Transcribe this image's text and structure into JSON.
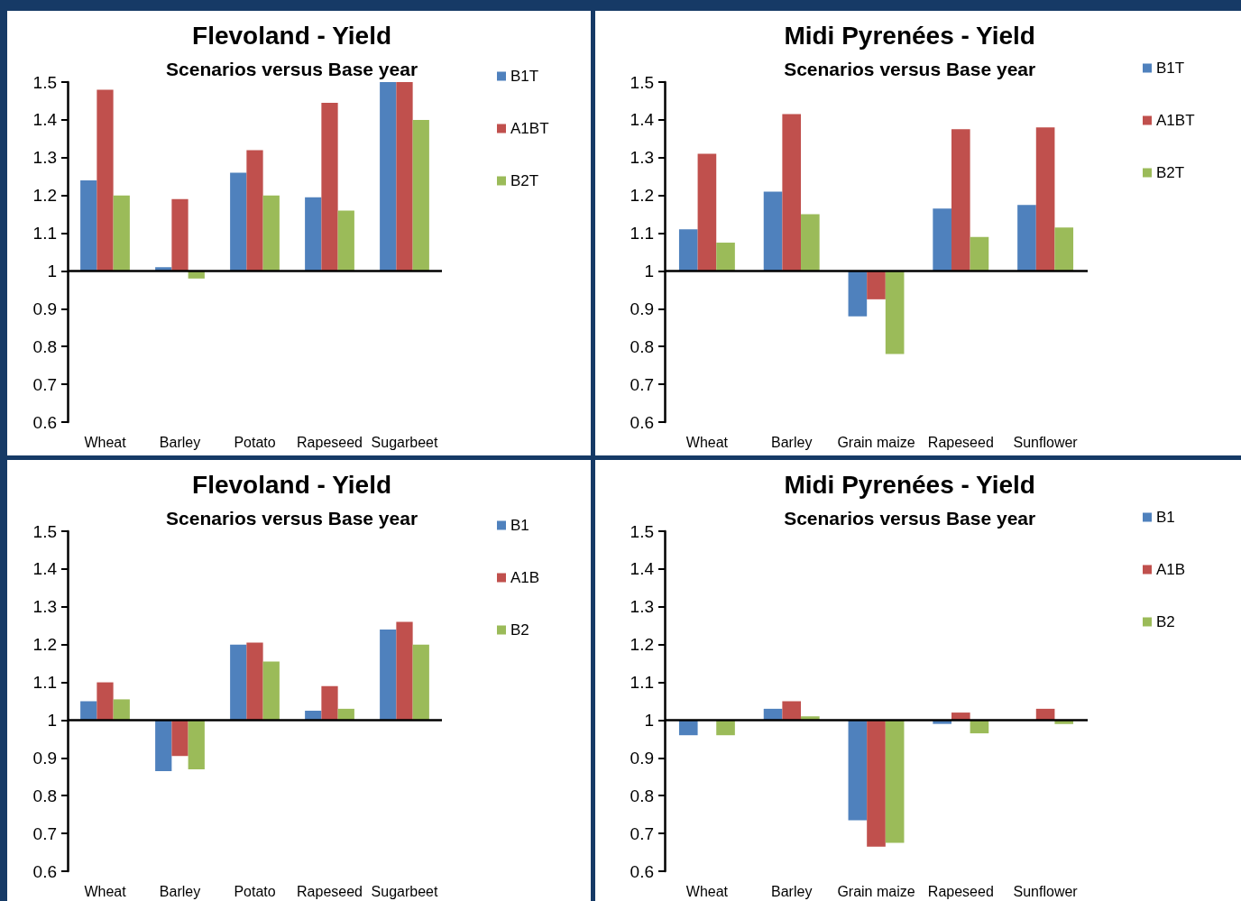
{
  "chart_data": [
    {
      "type": "bar",
      "title": "Flevoland - Yield",
      "subtitle": "Scenarios versus Base year",
      "categories": [
        "Wheat",
        "Barley",
        "Potato",
        "Rapeseed",
        "Sugarbeet"
      ],
      "series": [
        {
          "name": "B1T",
          "color": "#4f81bd",
          "base": [
            1,
            1,
            1,
            1,
            1
          ],
          "values": [
            0.24,
            0.01,
            0.26,
            0.195,
            0.5
          ]
        },
        {
          "name": "A1BT",
          "color": "#c0504d",
          "base": [
            1,
            1,
            1,
            1,
            1
          ],
          "values": [
            0.48,
            0.19,
            0.32,
            0.445,
            0.5
          ]
        },
        {
          "name": "B2T",
          "color": "#9bbb59",
          "base": [
            1,
            1,
            1,
            1,
            1
          ],
          "values": [
            0.2,
            -0.02,
            0.2,
            0.16,
            0.4
          ]
        }
      ],
      "ylim": [
        0.6,
        1.5
      ],
      "yticks": [
        0.6,
        0.7,
        0.8,
        0.9,
        1,
        1.1,
        1.2,
        1.3,
        1.4,
        1.5
      ],
      "grid": false,
      "legend": "right",
      "ref_lines": [
        {
          "axis": "y",
          "value": 1,
          "label": null,
          "color": "#000000"
        }
      ]
    },
    {
      "type": "bar",
      "title": "Midi Pyrenées - Yield",
      "subtitle": "Scenarios versus Base year",
      "categories": [
        "Wheat",
        "Barley",
        "Grain maize",
        "Rapeseed",
        "Sunflower"
      ],
      "series": [
        {
          "name": "B1T",
          "color": "#4f81bd",
          "base": [
            1,
            1,
            1,
            1,
            1
          ],
          "values": [
            0.11,
            0.21,
            -0.12,
            0.165,
            0.175
          ]
        },
        {
          "name": "A1BT",
          "color": "#c0504d",
          "base": [
            1,
            1,
            1,
            1,
            1
          ],
          "values": [
            0.31,
            0.415,
            -0.075,
            0.375,
            0.38
          ]
        },
        {
          "name": "B2T",
          "color": "#9bbb59",
          "base": [
            1,
            1,
            1,
            1,
            1
          ],
          "values": [
            0.075,
            0.15,
            -0.22,
            0.09,
            0.115
          ]
        }
      ],
      "ylim": [
        0.6,
        1.5
      ],
      "yticks": [
        0.6,
        0.7,
        0.8,
        0.9,
        1,
        1.1,
        1.2,
        1.3,
        1.4,
        1.5
      ],
      "grid": false,
      "legend": "right",
      "ref_lines": [
        {
          "axis": "y",
          "value": 1,
          "label": null,
          "color": "#000000"
        }
      ]
    },
    {
      "type": "bar",
      "title": "Flevoland - Yield",
      "subtitle": "Scenarios versus Base year",
      "categories": [
        "Wheat",
        "Barley",
        "Potato",
        "Rapeseed",
        "Sugarbeet"
      ],
      "series": [
        {
          "name": "B1",
          "color": "#4f81bd",
          "base": [
            1,
            1,
            1,
            1,
            1
          ],
          "values": [
            0.05,
            -0.135,
            0.2,
            0.025,
            0.24
          ]
        },
        {
          "name": "A1B",
          "color": "#c0504d",
          "base": [
            1,
            1,
            1,
            1,
            1
          ],
          "values": [
            0.1,
            -0.095,
            0.205,
            0.09,
            0.26
          ]
        },
        {
          "name": "B2",
          "color": "#9bbb59",
          "base": [
            1,
            1,
            1,
            1,
            1
          ],
          "values": [
            0.055,
            -0.13,
            0.155,
            0.03,
            0.2
          ]
        }
      ],
      "ylim": [
        0.6,
        1.5
      ],
      "yticks": [
        0.6,
        0.7,
        0.8,
        0.9,
        1,
        1.1,
        1.2,
        1.3,
        1.4,
        1.5
      ],
      "grid": false,
      "legend": "right",
      "ref_lines": [
        {
          "axis": "y",
          "value": 1,
          "label": null,
          "color": "#000000"
        }
      ]
    },
    {
      "type": "bar",
      "title": "Midi Pyrenées - Yield",
      "subtitle": "Scenarios versus Base year",
      "categories": [
        "Wheat",
        "Barley",
        "Grain maize",
        "Rapeseed",
        "Sunflower"
      ],
      "series": [
        {
          "name": "B1",
          "color": "#4f81bd",
          "base": [
            1,
            1,
            1,
            1,
            null
          ],
          "values": [
            -0.04,
            0.03,
            -0.265,
            -0.01,
            null
          ]
        },
        {
          "name": "A1B",
          "color": "#c0504d",
          "base": [
            null,
            1,
            1,
            1,
            1
          ],
          "values": [
            null,
            0.05,
            -0.335,
            0.02,
            0.03
          ]
        },
        {
          "name": "B2",
          "color": "#9bbb59",
          "base": [
            1,
            1,
            1,
            1,
            1
          ],
          "values": [
            -0.04,
            0.01,
            -0.325,
            -0.035,
            -0.01
          ]
        }
      ],
      "ylim": [
        0.6,
        1.5
      ],
      "yticks": [
        0.6,
        0.7,
        0.8,
        0.9,
        1,
        1.1,
        1.2,
        1.3,
        1.4,
        1.5
      ],
      "grid": false,
      "legend": "right",
      "ref_lines": [
        {
          "axis": "y",
          "value": 1,
          "label": null,
          "color": "#000000"
        }
      ]
    }
  ]
}
